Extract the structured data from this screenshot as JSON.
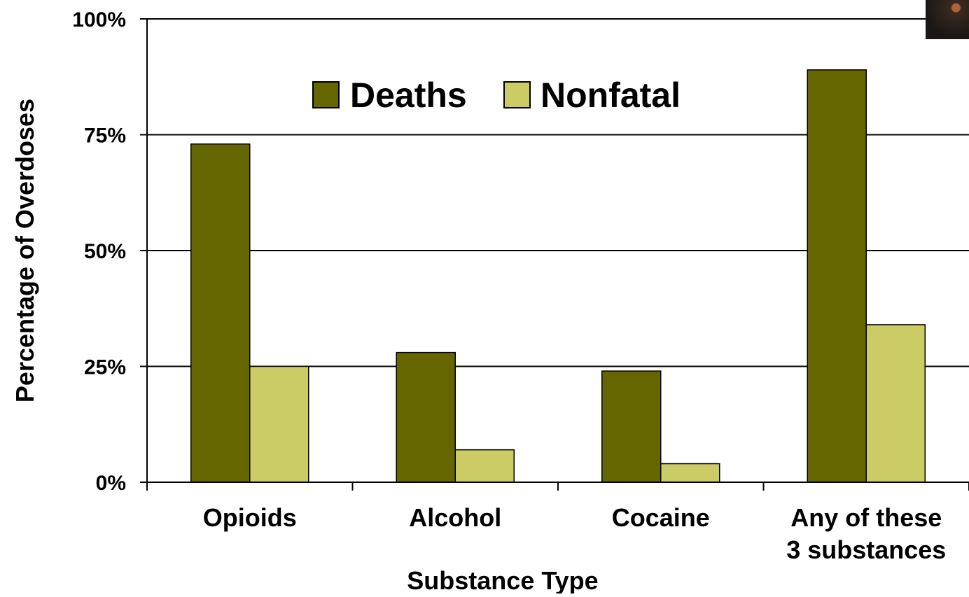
{
  "chart_data": {
    "type": "bar",
    "title": "",
    "xlabel": "Substance Type",
    "ylabel": "Percentage of Overdoses",
    "categories": [
      [
        "Opioids"
      ],
      [
        "Alcohol"
      ],
      [
        "Cocaine"
      ],
      [
        "Any of these",
        "3 substances"
      ]
    ],
    "series": [
      {
        "name": "Deaths",
        "values": [
          73,
          28,
          24,
          89
        ],
        "color": "#666600"
      },
      {
        "name": "Nonfatal",
        "values": [
          25,
          7,
          4,
          34
        ],
        "color": "#cccc66"
      }
    ],
    "ylim": [
      0,
      100
    ],
    "yticks": [
      0,
      25,
      50,
      75,
      100
    ],
    "ytick_labels": [
      "0%",
      "25%",
      "50%",
      "75%",
      "100%"
    ],
    "grid": true,
    "legend_position": "top-center"
  },
  "colors": {
    "deaths": "#666600",
    "nonfatal": "#cccc66",
    "axis": "#000000",
    "background": "#ffffff"
  }
}
